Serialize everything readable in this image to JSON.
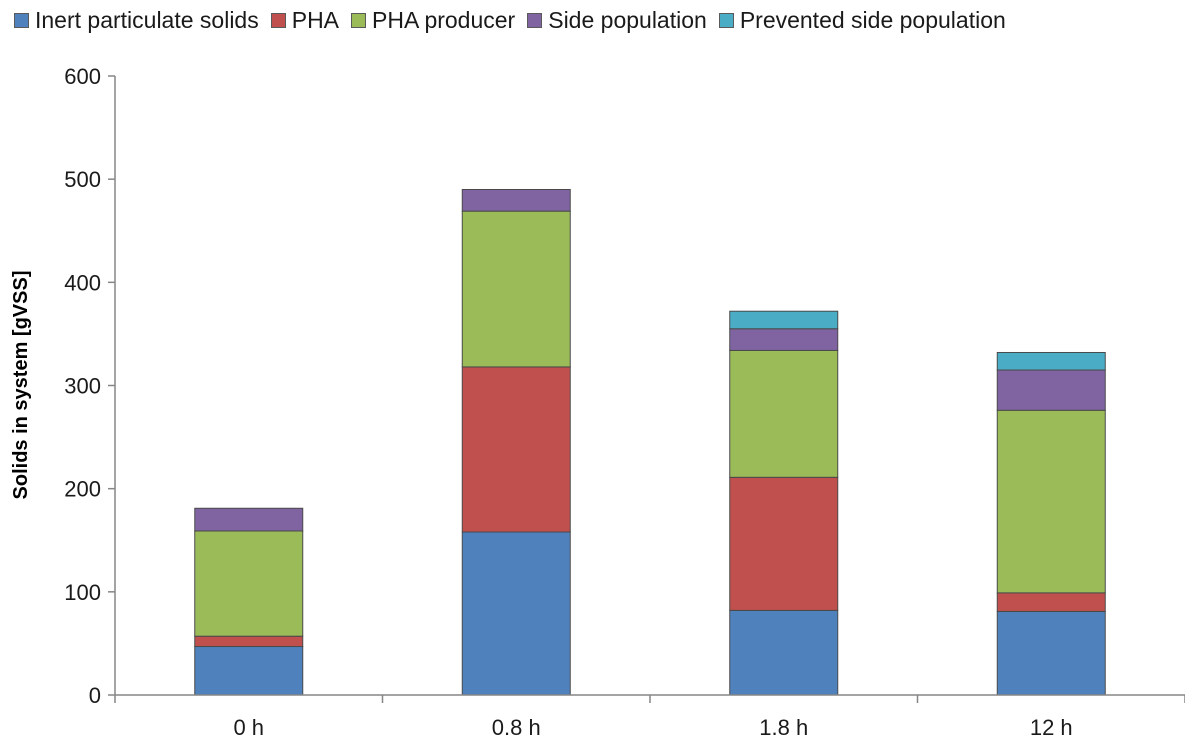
{
  "chart_data": {
    "type": "bar",
    "stacked": true,
    "categories": [
      "0 h",
      "0.8 h",
      "1.8 h",
      "12 h"
    ],
    "series": [
      {
        "name": "Inert particulate solids",
        "color": "#4F81BD",
        "values": [
          47,
          158,
          82,
          81
        ]
      },
      {
        "name": "PHA",
        "color": "#C0504D",
        "values": [
          10,
          160,
          129,
          18
        ]
      },
      {
        "name": "PHA producer",
        "color": "#9BBB59",
        "values": [
          102,
          151,
          123,
          177
        ]
      },
      {
        "name": "Side population",
        "color": "#8064A2",
        "values": [
          22,
          21,
          21,
          39
        ]
      },
      {
        "name": "Prevented side population",
        "color": "#4BACC6",
        "values": [
          0,
          0,
          17,
          17
        ]
      }
    ],
    "ylabel": "Solids in system [gVSS]",
    "xlabel": "",
    "ylim": [
      0,
      600
    ],
    "yticks": [
      0,
      100,
      200,
      300,
      400,
      500,
      600
    ],
    "grid": false,
    "legend_position": "top"
  }
}
